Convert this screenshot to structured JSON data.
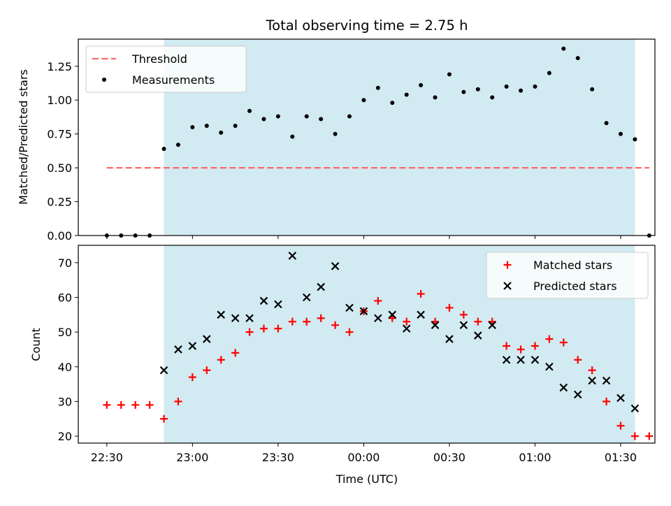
{
  "chart_data": [
    {
      "type": "scatter",
      "title": "Total observing time = 2.75 h",
      "xlabel": "",
      "ylabel": "Matched/Predicted stars",
      "xlim": [
        "22:20",
        "01:42"
      ],
      "ylim": [
        0,
        1.45
      ],
      "yticks": [
        "0.00",
        "0.25",
        "0.50",
        "0.75",
        "1.00",
        "1.25"
      ],
      "observing_window": [
        "22:50",
        "01:35"
      ],
      "threshold": {
        "name": "Threshold",
        "y": 0.5,
        "x": [
          "22:30",
          "01:40"
        ]
      },
      "series": [
        {
          "name": "Measurements",
          "points": [
            [
              "22:30",
              0.0
            ],
            [
              "22:35",
              0.0
            ],
            [
              "22:40",
              0.0
            ],
            [
              "22:45",
              0.0
            ],
            [
              "22:50",
              0.64
            ],
            [
              "22:55",
              0.67
            ],
            [
              "23:00",
              0.8
            ],
            [
              "23:05",
              0.81
            ],
            [
              "23:10",
              0.76
            ],
            [
              "23:15",
              0.81
            ],
            [
              "23:20",
              0.92
            ],
            [
              "23:25",
              0.86
            ],
            [
              "23:30",
              0.88
            ],
            [
              "23:35",
              0.73
            ],
            [
              "23:40",
              0.88
            ],
            [
              "23:45",
              0.86
            ],
            [
              "23:50",
              0.75
            ],
            [
              "23:55",
              0.88
            ],
            [
              "00:00",
              1.0
            ],
            [
              "00:05",
              1.09
            ],
            [
              "00:10",
              0.98
            ],
            [
              "00:15",
              1.04
            ],
            [
              "00:20",
              1.11
            ],
            [
              "00:25",
              1.02
            ],
            [
              "00:30",
              1.19
            ],
            [
              "00:35",
              1.06
            ],
            [
              "00:40",
              1.08
            ],
            [
              "00:45",
              1.02
            ],
            [
              "00:50",
              1.1
            ],
            [
              "00:55",
              1.07
            ],
            [
              "01:00",
              1.1
            ],
            [
              "01:05",
              1.2
            ],
            [
              "01:10",
              1.38
            ],
            [
              "01:15",
              1.31
            ],
            [
              "01:20",
              1.08
            ],
            [
              "01:25",
              0.83
            ],
            [
              "01:30",
              0.75
            ],
            [
              "01:35",
              0.71
            ],
            [
              "01:40",
              0.0
            ]
          ]
        }
      ],
      "legend": "upper-left",
      "colors": {
        "window": "#add8e6",
        "threshold": "#ff6666",
        "measurements": "#000000"
      }
    },
    {
      "type": "scatter",
      "title": "",
      "xlabel": "Time (UTC)",
      "ylabel": "Count",
      "xlim": [
        "22:20",
        "01:42"
      ],
      "ylim": [
        18,
        75
      ],
      "yticks": [
        "20",
        "30",
        "40",
        "50",
        "60",
        "70"
      ],
      "xticks": [
        "22:30",
        "23:00",
        "23:30",
        "00:00",
        "00:30",
        "01:00",
        "01:30"
      ],
      "observing_window": [
        "22:50",
        "01:35"
      ],
      "series": [
        {
          "name": "Matched stars",
          "marker": "+",
          "color": "#ff0000",
          "points": [
            [
              "22:30",
              29
            ],
            [
              "22:35",
              29
            ],
            [
              "22:40",
              29
            ],
            [
              "22:45",
              29
            ],
            [
              "22:50",
              25
            ],
            [
              "22:55",
              30
            ],
            [
              "23:00",
              37
            ],
            [
              "23:05",
              39
            ],
            [
              "23:10",
              42
            ],
            [
              "23:15",
              44
            ],
            [
              "23:20",
              50
            ],
            [
              "23:25",
              51
            ],
            [
              "23:30",
              51
            ],
            [
              "23:35",
              53
            ],
            [
              "23:40",
              53
            ],
            [
              "23:45",
              54
            ],
            [
              "23:50",
              52
            ],
            [
              "23:55",
              50
            ],
            [
              "00:00",
              56
            ],
            [
              "00:05",
              59
            ],
            [
              "00:10",
              54
            ],
            [
              "00:15",
              53
            ],
            [
              "00:20",
              61
            ],
            [
              "00:25",
              53
            ],
            [
              "00:30",
              57
            ],
            [
              "00:35",
              55
            ],
            [
              "00:40",
              53
            ],
            [
              "00:45",
              53
            ],
            [
              "00:50",
              46
            ],
            [
              "00:55",
              45
            ],
            [
              "01:00",
              46
            ],
            [
              "01:05",
              48
            ],
            [
              "01:10",
              47
            ],
            [
              "01:15",
              42
            ],
            [
              "01:20",
              39
            ],
            [
              "01:25",
              30
            ],
            [
              "01:30",
              23
            ],
            [
              "01:35",
              20
            ],
            [
              "01:40",
              20
            ]
          ]
        },
        {
          "name": "Predicted stars",
          "marker": "x",
          "color": "#000000",
          "points": [
            [
              "22:50",
              39
            ],
            [
              "22:55",
              45
            ],
            [
              "23:00",
              46
            ],
            [
              "23:05",
              48
            ],
            [
              "23:10",
              55
            ],
            [
              "23:15",
              54
            ],
            [
              "23:20",
              54
            ],
            [
              "23:25",
              59
            ],
            [
              "23:30",
              58
            ],
            [
              "23:35",
              72
            ],
            [
              "23:40",
              60
            ],
            [
              "23:45",
              63
            ],
            [
              "23:50",
              69
            ],
            [
              "23:55",
              57
            ],
            [
              "00:00",
              56
            ],
            [
              "00:05",
              54
            ],
            [
              "00:10",
              55
            ],
            [
              "00:15",
              51
            ],
            [
              "00:20",
              55
            ],
            [
              "00:25",
              52
            ],
            [
              "00:30",
              48
            ],
            [
              "00:35",
              52
            ],
            [
              "00:40",
              49
            ],
            [
              "00:45",
              52
            ],
            [
              "00:50",
              42
            ],
            [
              "00:55",
              42
            ],
            [
              "01:00",
              42
            ],
            [
              "01:05",
              40
            ],
            [
              "01:10",
              34
            ],
            [
              "01:15",
              32
            ],
            [
              "01:20",
              36
            ],
            [
              "01:25",
              36
            ],
            [
              "01:30",
              31
            ],
            [
              "01:35",
              28
            ]
          ]
        }
      ],
      "legend": "upper-right",
      "colors": {
        "window": "#add8e6"
      }
    }
  ]
}
